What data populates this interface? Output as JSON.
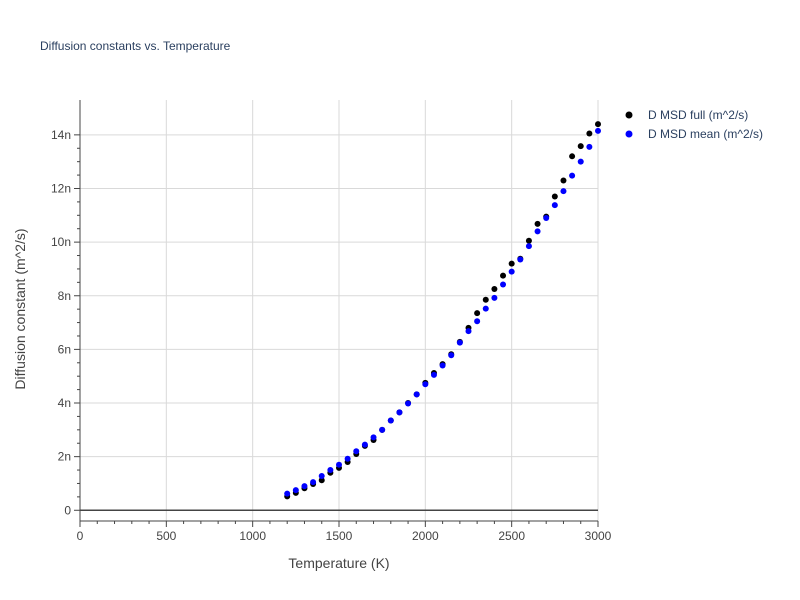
{
  "chart_data": {
    "type": "scatter",
    "title": "Diffusion constants vs. Temperature",
    "xlabel": "Temperature (K)",
    "ylabel": "Diffusion constant (m^2/s)",
    "xlim": [
      0,
      3000
    ],
    "ylim": [
      -4e-10,
      1.53e-08
    ],
    "grid": true,
    "legend_position": "top-right",
    "x_ticks": [
      {
        "value": 0,
        "label": "0"
      },
      {
        "value": 500,
        "label": "500"
      },
      {
        "value": 1000,
        "label": "1000"
      },
      {
        "value": 1500,
        "label": "1500"
      },
      {
        "value": 2000,
        "label": "2000"
      },
      {
        "value": 2500,
        "label": "2500"
      },
      {
        "value": 3000,
        "label": "3000"
      }
    ],
    "y_ticks": [
      {
        "value": 0,
        "label": "0"
      },
      {
        "value": 2e-09,
        "label": "2n"
      },
      {
        "value": 4e-09,
        "label": "4n"
      },
      {
        "value": 6e-09,
        "label": "6n"
      },
      {
        "value": 8e-09,
        "label": "8n"
      },
      {
        "value": 1e-08,
        "label": "10n"
      },
      {
        "value": 1.2e-08,
        "label": "12n"
      },
      {
        "value": 1.4e-08,
        "label": "14n"
      }
    ],
    "x": [
      1200,
      1250,
      1300,
      1350,
      1400,
      1450,
      1500,
      1550,
      1600,
      1650,
      1700,
      1750,
      1800,
      1850,
      1900,
      1950,
      2000,
      2050,
      2100,
      2150,
      2200,
      2250,
      2300,
      2350,
      2400,
      2450,
      2500,
      2550,
      2600,
      2650,
      2700,
      2750,
      2800,
      2850,
      2900,
      2950,
      3000
    ],
    "series": [
      {
        "name": "D MSD full (m^2/s)",
        "color": "#000000",
        "values": [
          5.2e-10,
          6.5e-10,
          8.2e-10,
          9.8e-10,
          1.12e-09,
          1.4e-09,
          1.58e-09,
          1.8e-09,
          2.1e-09,
          2.4e-09,
          2.62e-09,
          3e-09,
          3.35e-09,
          3.65e-09,
          4e-09,
          4.32e-09,
          4.75e-09,
          5.12e-09,
          5.45e-09,
          5.82e-09,
          6.28e-09,
          6.8e-09,
          7.35e-09,
          7.85e-09,
          8.25e-09,
          8.75e-09,
          9.2e-09,
          9.38e-09,
          1.005e-08,
          1.068e-08,
          1.095e-08,
          1.17e-08,
          1.23e-08,
          1.32e-08,
          1.358e-08,
          1.405e-08,
          1.44e-08
        ]
      },
      {
        "name": "D MSD mean (m^2/s)",
        "color": "#0000ff",
        "values": [
          6.2e-10,
          7.5e-10,
          9e-10,
          1.05e-09,
          1.28e-09,
          1.5e-09,
          1.7e-09,
          1.92e-09,
          2.2e-09,
          2.45e-09,
          2.72e-09,
          3e-09,
          3.35e-09,
          3.65e-09,
          3.98e-09,
          4.32e-09,
          4.7e-09,
          5.05e-09,
          5.4e-09,
          5.78e-09,
          6.25e-09,
          6.68e-09,
          7.05e-09,
          7.52e-09,
          7.92e-09,
          8.42e-09,
          8.9e-09,
          9.35e-09,
          9.85e-09,
          1.04e-08,
          1.09e-08,
          1.138e-08,
          1.19e-08,
          1.248e-08,
          1.3e-08,
          1.355e-08,
          1.415e-08
        ]
      }
    ]
  }
}
